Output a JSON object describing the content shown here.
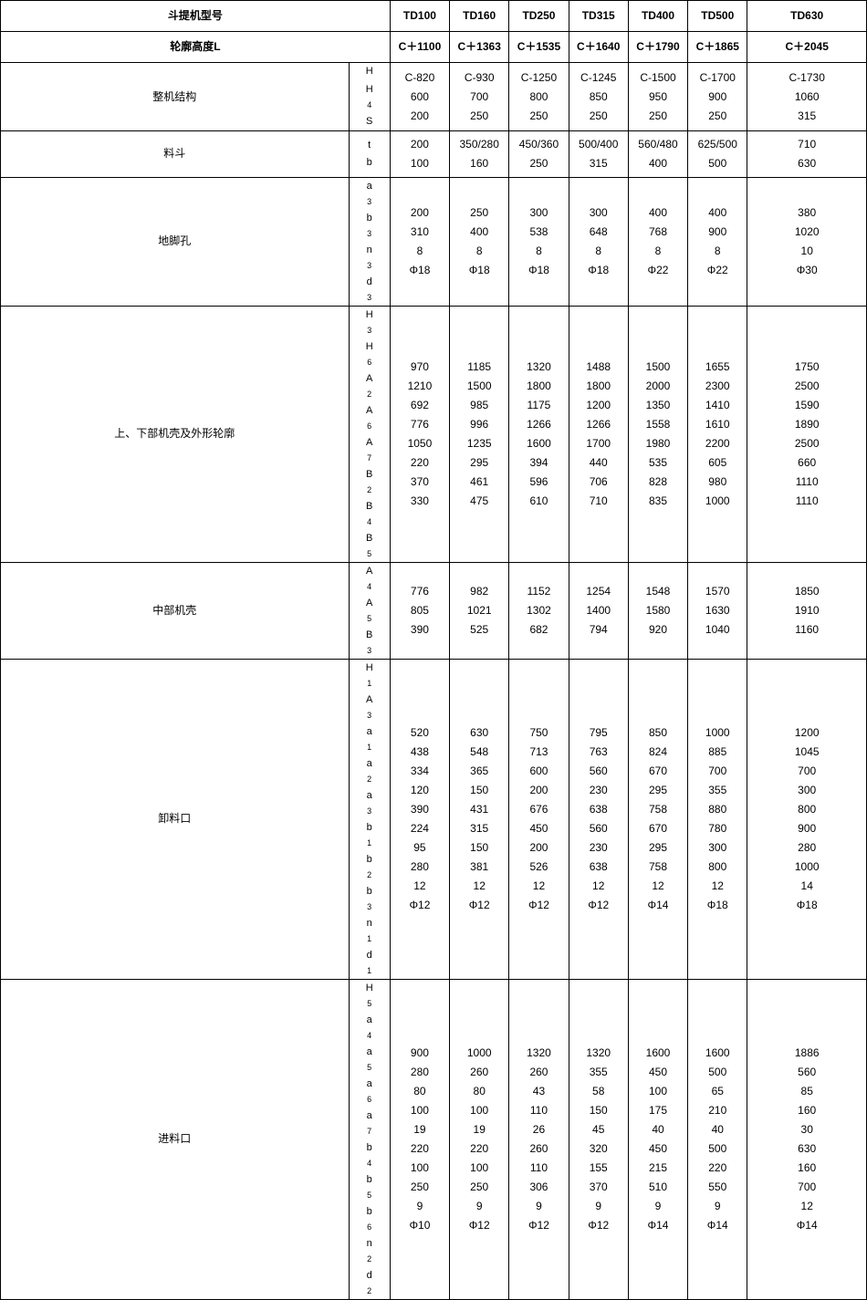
{
  "header": {
    "model_label": "斗提机型号",
    "height_label": "轮廓高度L",
    "models": [
      "TD100",
      "TD160",
      "TD250",
      "TD315",
      "TD400",
      "TD500",
      "TD630"
    ],
    "heights": [
      "C＋1100",
      "C＋1363",
      "C＋1535",
      "C＋1640",
      "C＋1790",
      "C＋1865",
      "C＋2045"
    ]
  },
  "sections": [
    {
      "name": "整机结构",
      "params": [
        "H",
        "H₄",
        "S"
      ],
      "rows_h": 3,
      "cols": [
        [
          "C-820",
          "600",
          "200"
        ],
        [
          "C-930",
          "700",
          "250"
        ],
        [
          "C-1250",
          "800",
          "250"
        ],
        [
          "C-1245",
          "850",
          "250"
        ],
        [
          "C-1500",
          "950",
          "250"
        ],
        [
          "C-1700",
          "900",
          "250"
        ],
        [
          "C-1730",
          "1060",
          "315"
        ]
      ]
    },
    {
      "name": "料斗",
      "params": [
        "t",
        "b"
      ],
      "rows_h": 2,
      "cols": [
        [
          "200",
          "100"
        ],
        [
          "350/280",
          "160"
        ],
        [
          "450/360",
          "250"
        ],
        [
          "500/400",
          "315"
        ],
        [
          "560/480",
          "400"
        ],
        [
          "625/500",
          "500"
        ],
        [
          "710",
          "630"
        ]
      ]
    },
    {
      "name": "地脚孔",
      "params": [
        "a₃",
        "b₃",
        "n₃",
        "d₃"
      ],
      "rows_h": 4,
      "cols": [
        [
          "200",
          "310",
          "8",
          "Φ18"
        ],
        [
          "250",
          "400",
          "8",
          "Φ18"
        ],
        [
          "300",
          "538",
          "8",
          "Φ18"
        ],
        [
          "300",
          "648",
          "8",
          "Φ18"
        ],
        [
          "400",
          "768",
          "8",
          "Φ22"
        ],
        [
          "400",
          "900",
          "8",
          "Φ22"
        ],
        [
          "380",
          "1020",
          "10",
          "Φ30"
        ]
      ]
    },
    {
      "name": "上、下部机壳及外形轮廓",
      "params": [
        "H₃",
        "H₆",
        "A₂",
        "A₆",
        "A₇",
        "B₂",
        "B₄",
        "B₅"
      ],
      "rows_h": 8,
      "cols": [
        [
          "970",
          "1210",
          "692",
          "776",
          "1050",
          "220",
          "370",
          "330"
        ],
        [
          "1185",
          "1500",
          "985",
          "996",
          "1235",
          "295",
          "461",
          "475"
        ],
        [
          "1320",
          "1800",
          "1175",
          "1266",
          "1600",
          "394",
          "596",
          "610"
        ],
        [
          "1488",
          "1800",
          "1200",
          "1266",
          "1700",
          "440",
          "706",
          "710"
        ],
        [
          "1500",
          "2000",
          "1350",
          "1558",
          "1980",
          "535",
          "828",
          "835"
        ],
        [
          "1655",
          "2300",
          "1410",
          "1610",
          "2200",
          "605",
          "980",
          "1000"
        ],
        [
          "1750",
          "2500",
          "1590",
          "1890",
          "2500",
          "660",
          "1110",
          "1110"
        ]
      ]
    },
    {
      "name": "中部机壳",
      "params": [
        "A₄",
        "A₅",
        "B₃"
      ],
      "rows_h": 3,
      "cols": [
        [
          "776",
          "805",
          "390"
        ],
        [
          "982",
          "1021",
          "525"
        ],
        [
          "1152",
          "1302",
          "682"
        ],
        [
          "1254",
          "1400",
          "794"
        ],
        [
          "1548",
          "1580",
          "920"
        ],
        [
          "1570",
          "1630",
          "1040"
        ],
        [
          "1850",
          "1910",
          "1160"
        ]
      ]
    },
    {
      "name": "卸料口",
      "params": [
        "H₁",
        "A₃",
        "a₁",
        "a₂",
        "a₃",
        "b₁",
        "b₂",
        "b₃",
        "n₁",
        "d₁"
      ],
      "rows_h": 10,
      "cols": [
        [
          "520",
          "438",
          "334",
          "120",
          "390",
          "224",
          "95",
          "280",
          "12",
          "Φ12"
        ],
        [
          "630",
          "548",
          "365",
          "150",
          "431",
          "315",
          "150",
          "381",
          "12",
          "Φ12"
        ],
        [
          "750",
          "713",
          "600",
          "200",
          "676",
          "450",
          "200",
          "526",
          "12",
          "Φ12"
        ],
        [
          "795",
          "763",
          "560",
          "230",
          "638",
          "560",
          "230",
          "638",
          "12",
          "Φ12"
        ],
        [
          "850",
          "824",
          "670",
          "295",
          "758",
          "670",
          "295",
          "758",
          "12",
          "Φ14"
        ],
        [
          "1000",
          "885",
          "700",
          "355",
          "880",
          "780",
          "300",
          "800",
          "12",
          "Φ18"
        ],
        [
          "1200",
          "1045",
          "700",
          "300",
          "800",
          "900",
          "280",
          "1000",
          "14",
          "Φ18"
        ]
      ]
    },
    {
      "name": "进料口",
      "params": [
        "H₅",
        "a₄",
        "a₅",
        "a₆",
        "a₇",
        "b₄",
        "b₅",
        "b₆",
        "n₂",
        "d₂"
      ],
      "rows_h": 10,
      "cols": [
        [
          "900",
          "280",
          "80",
          "100",
          "19",
          "220",
          "100",
          "250",
          "9",
          "Φ10"
        ],
        [
          "1000",
          "260",
          "80",
          "100",
          "19",
          "220",
          "100",
          "250",
          "9",
          "Φ12"
        ],
        [
          "1320",
          "260",
          "43",
          "110",
          "26",
          "260",
          "110",
          "306",
          "9",
          "Φ12"
        ],
        [
          "1320",
          "355",
          "58",
          "150",
          "45",
          "320",
          "155",
          "370",
          "9",
          "Φ12"
        ],
        [
          "1600",
          "450",
          "100",
          "175",
          "40",
          "450",
          "215",
          "510",
          "9",
          "Φ14"
        ],
        [
          "1600",
          "500",
          "65",
          "210",
          "40",
          "500",
          "220",
          "550",
          "9",
          "Φ14"
        ],
        [
          "1886",
          "560",
          "85",
          "160",
          "30",
          "630",
          "160",
          "700",
          "12",
          "Φ14"
        ]
      ]
    }
  ],
  "colors": {
    "border": "#000000",
    "background": "#ffffff",
    "text": "#000000"
  }
}
